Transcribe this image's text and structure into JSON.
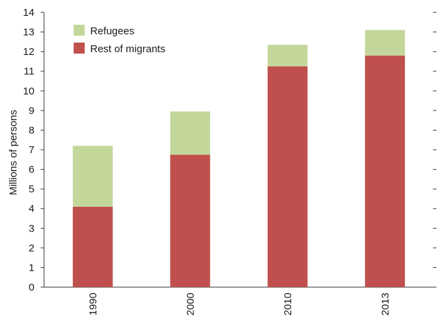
{
  "chart_data": {
    "type": "bar",
    "stacked": true,
    "categories": [
      "1990",
      "2000",
      "2010",
      "2013"
    ],
    "series": [
      {
        "name": "Rest of migrants",
        "values": [
          4.1,
          6.75,
          11.25,
          11.8
        ],
        "color": "#c0504d"
      },
      {
        "name": "Refugees",
        "values": [
          3.1,
          2.2,
          1.1,
          1.3
        ],
        "color": "#c4d79b"
      }
    ],
    "ylabel": "Millions of persons",
    "ylim": [
      0,
      14
    ],
    "yticks": [
      0,
      1,
      2,
      3,
      4,
      5,
      6,
      7,
      8,
      9,
      10,
      11,
      12,
      13,
      14
    ],
    "grid": false,
    "legend": {
      "position": "top-left",
      "entries": [
        {
          "label": "Refugees",
          "color": "#c4d79b"
        },
        {
          "label": "Rest of migrants",
          "color": "#c0504d"
        }
      ]
    }
  }
}
